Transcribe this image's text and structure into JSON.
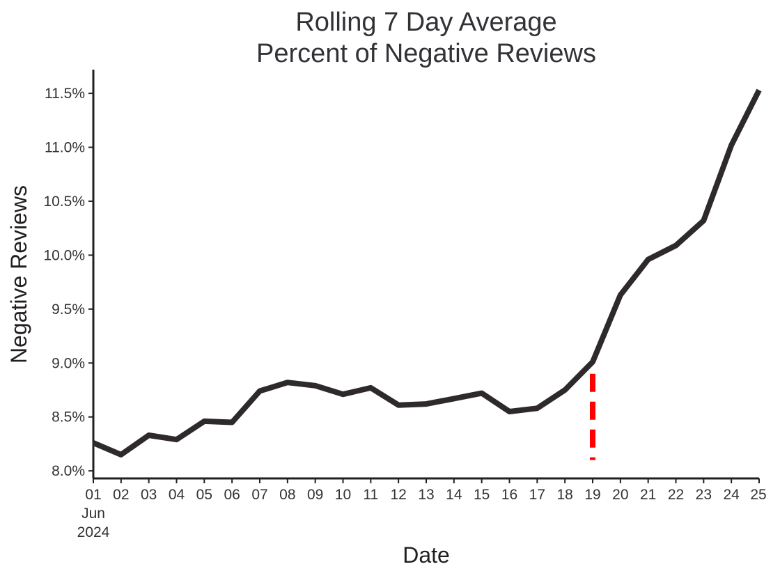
{
  "chart_data": {
    "type": "line",
    "title": [
      "Rolling 7 Day Average",
      "Percent of Negative Reviews"
    ],
    "xlabel": "Date",
    "ylabel": "Negative Reviews",
    "x": [
      "01",
      "02",
      "03",
      "04",
      "05",
      "06",
      "07",
      "08",
      "09",
      "10",
      "11",
      "12",
      "13",
      "14",
      "15",
      "16",
      "17",
      "18",
      "19",
      "20",
      "21",
      "22",
      "23",
      "24",
      "25"
    ],
    "x_first_label_extra": [
      "Jun",
      "2024"
    ],
    "series": [
      {
        "values": [
          8.26,
          8.15,
          8.33,
          8.29,
          8.46,
          8.45,
          8.74,
          8.82,
          8.79,
          8.71,
          8.77,
          8.61,
          8.62,
          8.67,
          8.72,
          8.55,
          8.58,
          8.75,
          9.01,
          9.63,
          9.96,
          10.09,
          10.32,
          11.02,
          11.53
        ],
        "color": "#2e2a2b"
      }
    ],
    "yticks": [
      8.0,
      8.5,
      9.0,
      9.5,
      10.0,
      10.5,
      11.0,
      11.5
    ],
    "ytick_labels": [
      "8.0%",
      "8.5%",
      "9.0%",
      "9.5%",
      "10.0%",
      "10.5%",
      "11.0%",
      "11.5%"
    ],
    "ylim": [
      7.93,
      11.72
    ],
    "marker_line": {
      "x": "19",
      "y_range": [
        8.1,
        8.9
      ],
      "color": "#ff0000",
      "style": "dashed"
    },
    "grid": false,
    "legend": false
  }
}
